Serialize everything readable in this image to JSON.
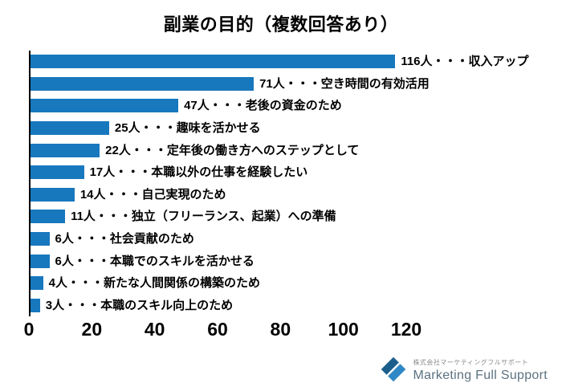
{
  "title": "副業の目的（複数回答あり）",
  "chart_data": {
    "type": "bar",
    "orientation": "horizontal",
    "bar_color": "#1878be",
    "xlim": [
      0,
      120
    ],
    "xticks": [
      0,
      20,
      40,
      60,
      80,
      100,
      120
    ],
    "categories": [
      "収入アップ",
      "空き時間の有効活用",
      "老後の資金のため",
      "趣味を活かせる",
      "定年後の働き方へのステップとして",
      "本職以外の仕事を経験したい",
      "自己実現のため",
      "独立（フリーランス、起業）への準備",
      "社会貢献のため",
      "本職でのスキルを活かせる",
      "新たな人間関係の構築のため",
      "本職のスキル向上のため"
    ],
    "values": [
      116,
      71,
      47,
      25,
      22,
      17,
      14,
      11,
      6,
      6,
      4,
      3
    ],
    "labels": [
      "116人・・・収入アップ",
      "71人・・・空き時間の有効活用",
      "47人・・・老後の資金のため",
      "25人・・・趣味を活かせる",
      "22人・・・定年後の働き方へのステップとして",
      "17人・・・本職以外の仕事を経験したい",
      "14人・・・自己実現のため",
      "11人・・・独立（フリーランス、起業）への準備",
      "6人・・・社会貢献のため",
      "6人・・・本職でのスキルを活かせる",
      "4人・・・新たな人間関係の構築のため",
      "3人・・・本職のスキル向上のため"
    ],
    "legend": null,
    "grid": false
  },
  "footer": {
    "company_jp": "株式会社マーケティングフルサポート",
    "company_en": "Marketing Full Support",
    "logo_color_dark": "#1b5e8c",
    "logo_color_light": "#2f88c5"
  }
}
